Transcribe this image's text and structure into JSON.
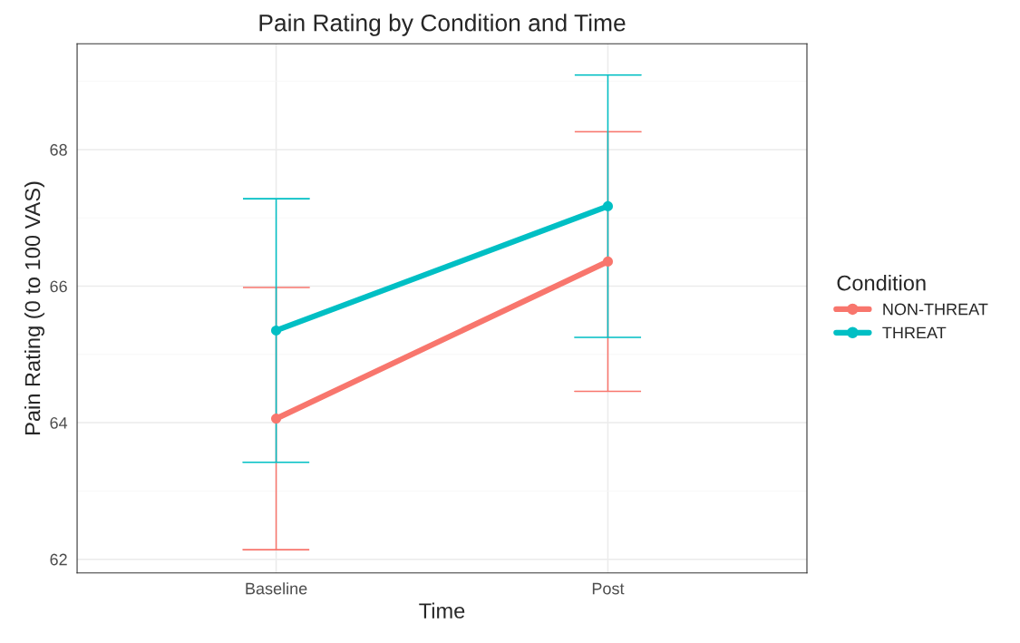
{
  "chart_data": {
    "type": "line",
    "title": "Pain Rating by Condition and Time",
    "xlabel": "Time",
    "ylabel": "Pain Rating (0 to 100 VAS)",
    "legend_title": "Condition",
    "categories": [
      "Baseline",
      "Post"
    ],
    "series": [
      {
        "name": "NON-THREAT",
        "color": "#f8766d",
        "values": [
          64.06,
          66.36
        ],
        "errors": [
          1.92,
          1.9
        ]
      },
      {
        "name": "THREAT",
        "color": "#00bfc4",
        "values": [
          65.35,
          67.17
        ],
        "errors": [
          1.93,
          1.92
        ]
      }
    ],
    "ylim": [
      61.8,
      69.55
    ],
    "yticks": [
      62,
      64,
      66,
      68
    ],
    "grid": true,
    "legend": "right",
    "marker": "circle",
    "line_style": "solid"
  }
}
